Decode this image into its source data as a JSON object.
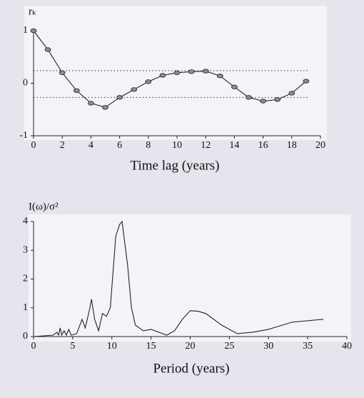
{
  "chart_data": [
    {
      "type": "line",
      "xlabel": "Time lag (years)",
      "ylabel": "rₖ",
      "x": [
        0,
        1,
        2,
        3,
        4,
        5,
        6,
        7,
        8,
        9,
        10,
        11,
        12,
        13,
        14,
        15,
        16,
        17,
        18,
        19
      ],
      "series": [
        {
          "color": "#222222",
          "markers": true,
          "values": [
            1,
            0.64,
            0.2,
            -0.14,
            -0.38,
            -0.46,
            -0.27,
            -0.12,
            0.03,
            0.15,
            0.2,
            0.22,
            0.23,
            0.14,
            -0.07,
            -0.27,
            -0.34,
            -0.31,
            -0.19,
            0.04
          ]
        }
      ],
      "reference_lines": [
        0.24,
        -0.27
      ],
      "xlim": [
        0,
        20
      ],
      "xticks": [
        0,
        2,
        4,
        6,
        8,
        10,
        12,
        14,
        16,
        18,
        20
      ],
      "ylim": [
        -1,
        1
      ],
      "yticks": [
        -1,
        0,
        1
      ]
    },
    {
      "type": "line",
      "xlabel": "Period (years)",
      "ylabel": "I(ω)/σ²",
      "x": [
        0,
        2.5,
        3,
        3.2,
        3.4,
        3.6,
        3.9,
        4.2,
        4.5,
        4.8,
        5.5,
        6.2,
        6.6,
        7.2,
        7.4,
        7.8,
        8.3,
        8.8,
        9.3,
        9.8,
        10.5,
        11,
        11.3,
        12,
        12.5,
        13,
        14,
        15,
        16,
        17,
        18,
        19,
        20,
        21,
        22,
        24,
        26,
        28,
        30,
        33,
        37
      ],
      "series": [
        {
          "color": "#222222",
          "markers": false,
          "values": [
            0,
            0.05,
            0.15,
            0.05,
            0.3,
            0.05,
            0.2,
            0.05,
            0.25,
            0.05,
            0.1,
            0.6,
            0.3,
            1.0,
            1.3,
            0.6,
            0.2,
            0.8,
            0.7,
            1.0,
            3.5,
            3.9,
            4.0,
            2.5,
            1.0,
            0.4,
            0.2,
            0.25,
            0.15,
            0.05,
            0.2,
            0.6,
            0.9,
            0.88,
            0.8,
            0.4,
            0.1,
            0.15,
            0.25,
            0.5,
            0.6
          ]
        }
      ],
      "xlim": [
        0,
        40
      ],
      "xticks": [
        0,
        5,
        10,
        15,
        20,
        25,
        30,
        35,
        40
      ],
      "ylim": [
        0,
        4
      ],
      "yticks": [
        0,
        1,
        2,
        3,
        4
      ]
    }
  ]
}
